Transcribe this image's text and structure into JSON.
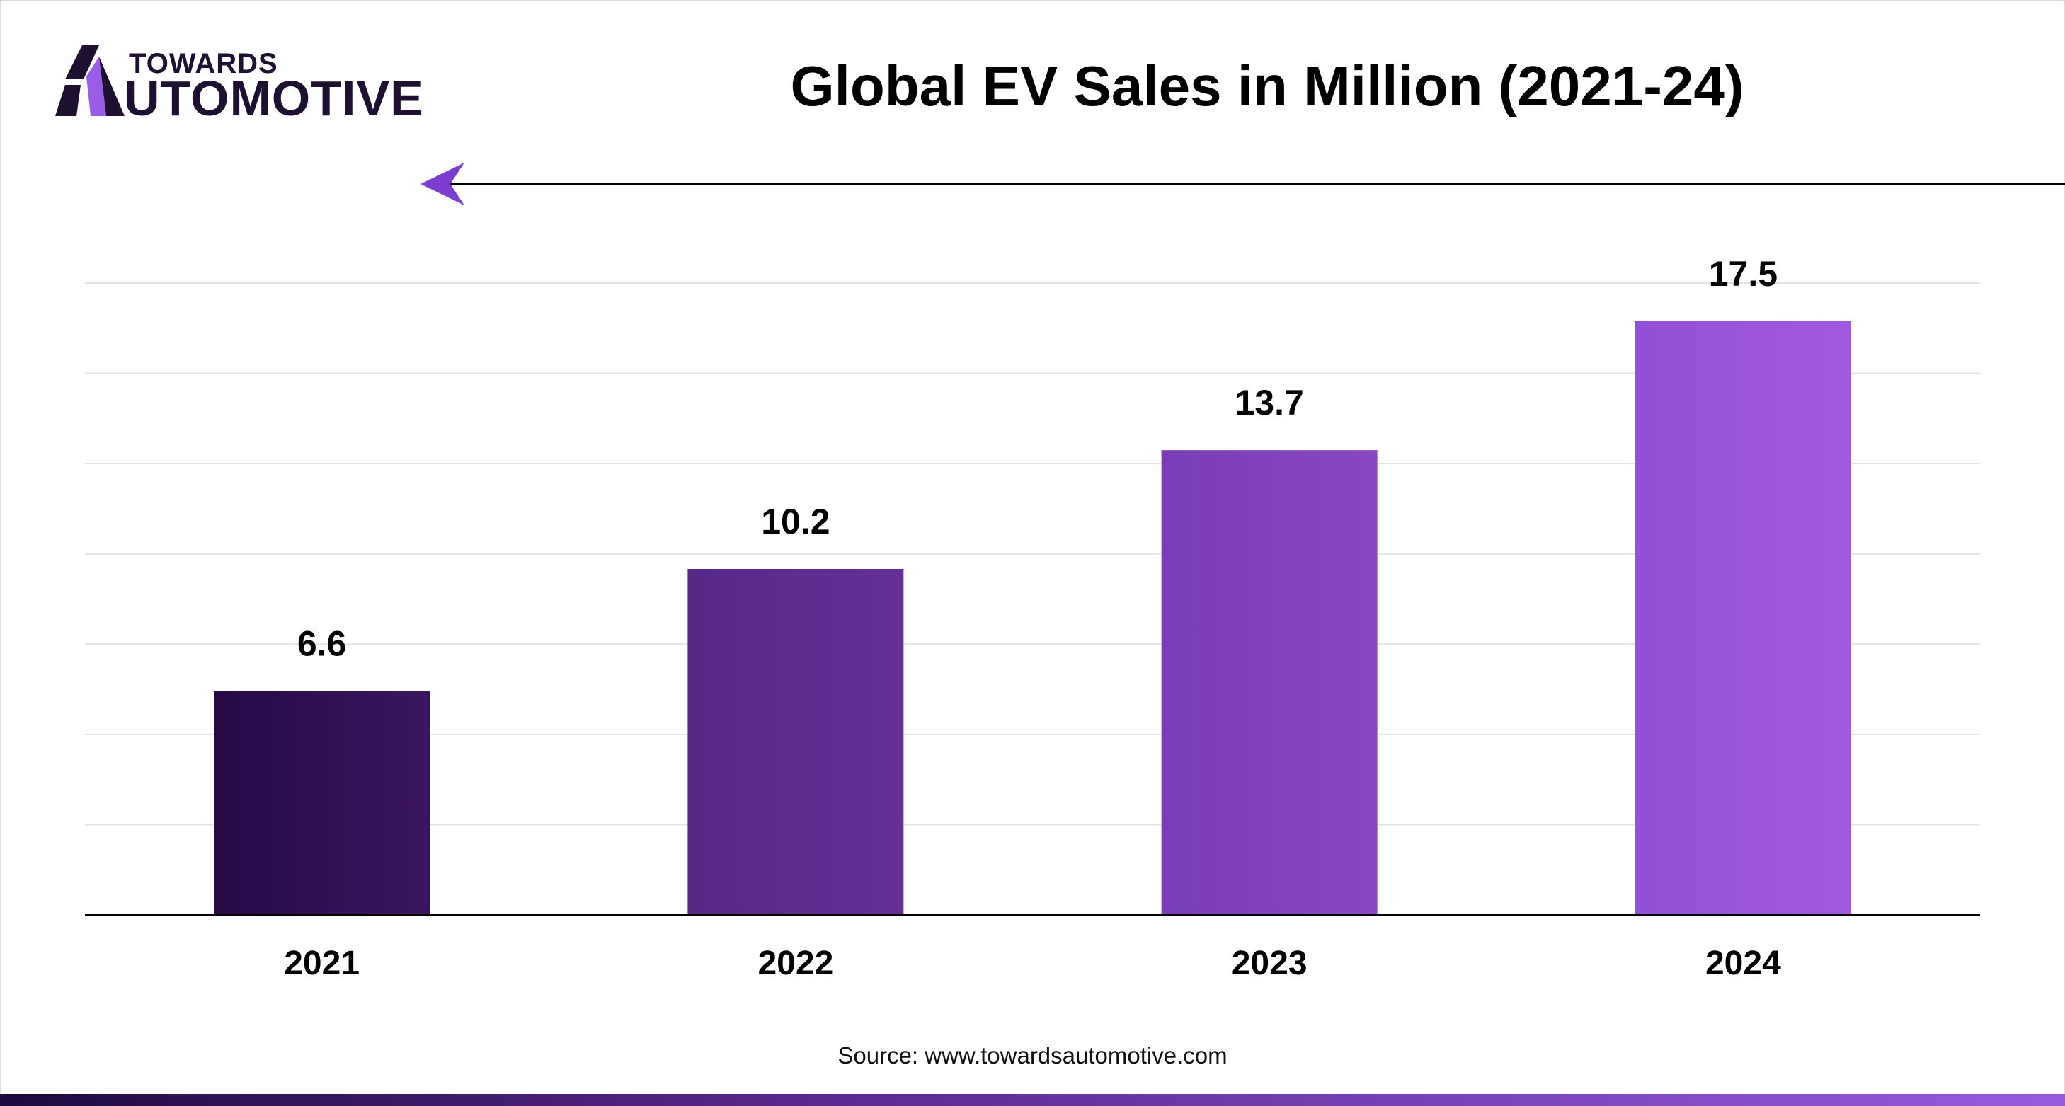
{
  "brand": {
    "line1": "TOWARDS",
    "line2": "UTOMOTIVE"
  },
  "title": "Global EV Sales in Million (2021-24)",
  "source": "Source: www.towardsautomotive.com",
  "colors": {
    "dark": "#1e1030",
    "accent": "#9b5de5",
    "gridline": "#e3e3e3",
    "axis": "#000000"
  },
  "chart_data": {
    "type": "bar",
    "title": "Global EV Sales in Million (2021-24)",
    "categories": [
      "2021",
      "2022",
      "2023",
      "2024"
    ],
    "values": [
      6.6,
      10.2,
      13.7,
      17.5
    ],
    "bar_colors": [
      [
        "#260a45",
        "#3b165f"
      ],
      [
        "#572888",
        "#662f96"
      ],
      [
        "#7a3cb8",
        "#8a46c4"
      ],
      [
        "#9350d8",
        "#a05ae0"
      ]
    ],
    "xlabel": "",
    "ylabel": "",
    "ylim": [
      0,
      17.5
    ],
    "grid": true,
    "data_labels": [
      "6.6",
      "10.2",
      "13.7",
      "17.5"
    ]
  }
}
